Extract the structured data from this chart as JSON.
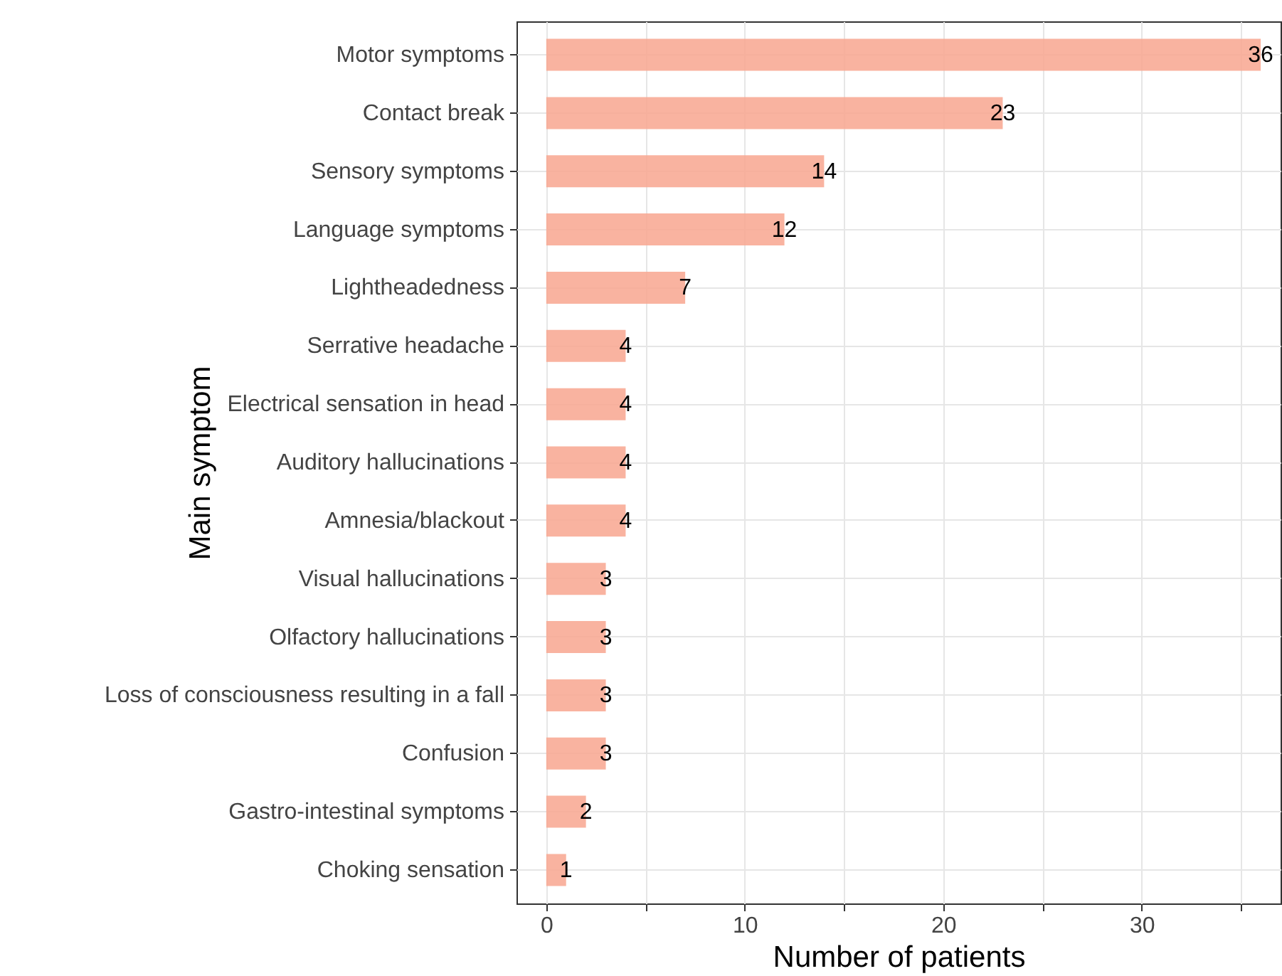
{
  "chart_data": {
    "type": "bar",
    "orientation": "horizontal",
    "xlabel": "Number of patients",
    "ylabel": "Main symptom",
    "categories": [
      "Motor symptoms",
      "Contact break",
      "Sensory symptoms",
      "Language symptoms",
      "Lightheadedness",
      "Serrative headache",
      "Electrical sensation in head",
      "Auditory hallucinations",
      "Amnesia/blackout",
      "Visual hallucinations",
      "Olfactory hallucinations",
      "Loss of consciousness resulting in a fall",
      "Confusion",
      "Gastro-intestinal symptoms",
      "Choking sensation"
    ],
    "values": [
      36,
      23,
      14,
      12,
      7,
      4,
      4,
      4,
      4,
      3,
      3,
      3,
      3,
      2,
      1
    ],
    "color": "#f8a68f",
    "xlim": [
      -1.5,
      37
    ],
    "xticks": [
      0,
      {
        "value": 5,
        "label": null
      },
      10,
      {
        "value": 15,
        "label": null
      },
      20,
      {
        "value": 25,
        "label": null
      },
      30,
      {
        "value": 35,
        "label": null
      }
    ],
    "grid": true,
    "data_labels": true
  }
}
